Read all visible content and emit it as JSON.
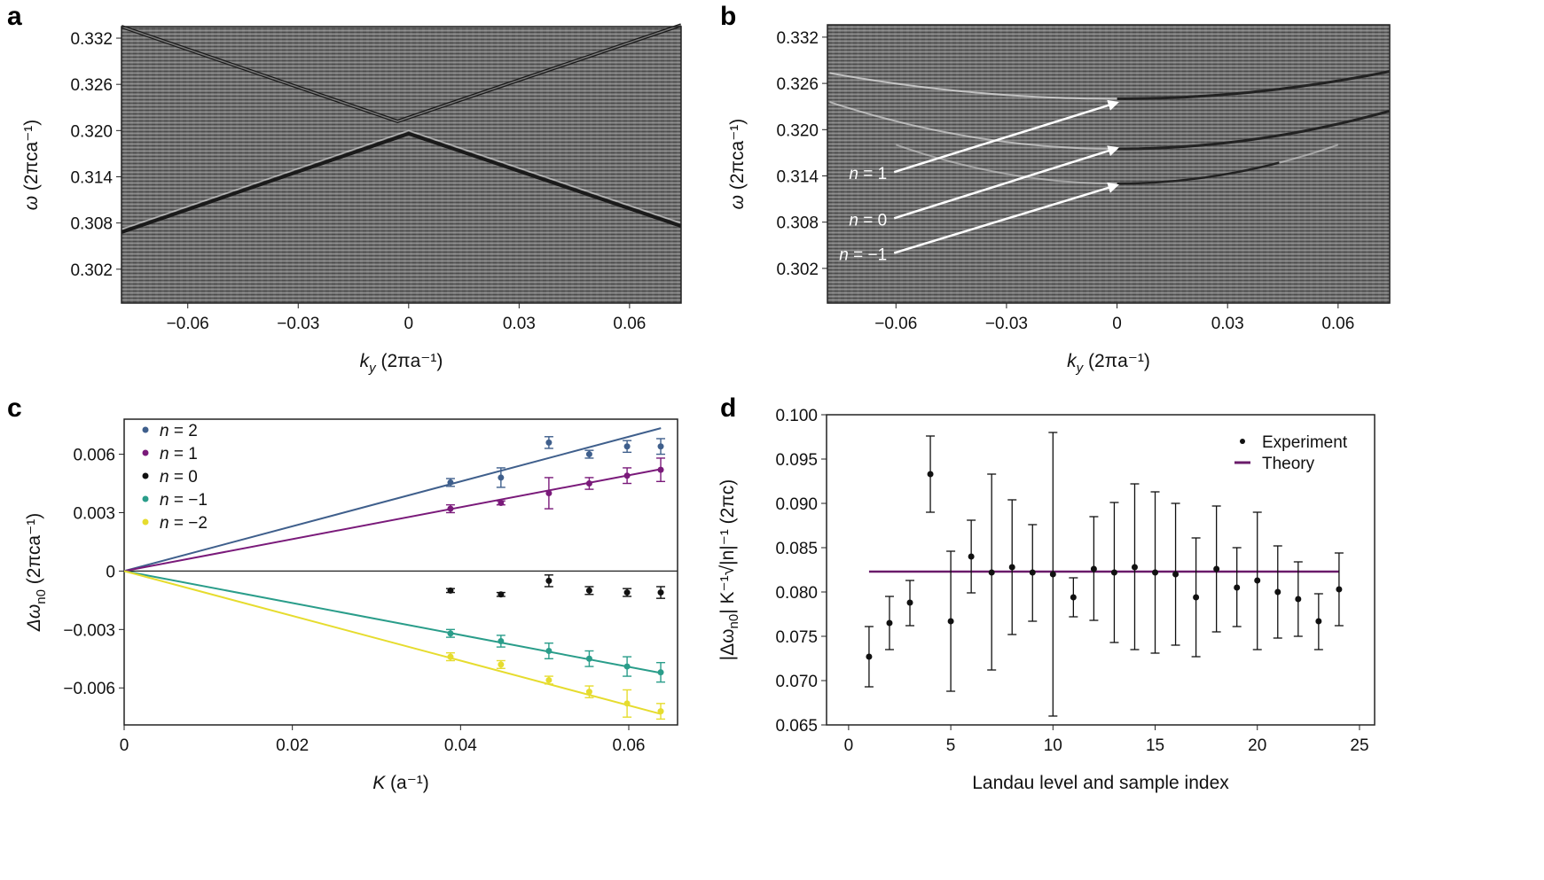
{
  "chart_data": [
    {
      "panel": "a",
      "type": "heatmap",
      "xlabel": {
        "var": "k",
        "sub": "y",
        "unit": " (2πa⁻¹)"
      },
      "ylabel": {
        "var": "ω",
        "unit": " (2πca⁻¹)"
      },
      "xlim": [
        -0.078,
        0.074
      ],
      "ylim": [
        0.2976,
        0.3335
      ],
      "xticks": [
        "-0.06",
        "-0.03",
        "0",
        "0.03",
        "0.06"
      ],
      "xtick_values": [
        -0.06,
        -0.03,
        0,
        0.03,
        0.06
      ],
      "yticks": [
        "0.302",
        "0.308",
        "0.314",
        "0.320",
        "0.326",
        "0.332"
      ],
      "ytick_values": [
        0.302,
        0.308,
        0.314,
        0.32,
        0.326,
        0.332
      ],
      "colormap": "grayscale"
    },
    {
      "panel": "b",
      "type": "heatmap",
      "xlabel": {
        "var": "k",
        "sub": "y",
        "unit": " (2πa⁻¹)"
      },
      "ylabel": {
        "var": "ω",
        "unit": " (2πca⁻¹)"
      },
      "xlim": [
        -0.0786,
        0.074
      ],
      "ylim": [
        0.2975,
        0.3336
      ],
      "xticks": [
        "-0.06",
        "-0.03",
        "0",
        "0.03",
        "0.06"
      ],
      "xtick_values": [
        -0.06,
        -0.03,
        0,
        0.03,
        0.06
      ],
      "yticks": [
        "0.302",
        "0.308",
        "0.314",
        "0.320",
        "0.326",
        "0.332"
      ],
      "ytick_values": [
        0.302,
        0.308,
        0.314,
        0.32,
        0.326,
        0.332
      ],
      "colormap": "grayscale",
      "annotations": [
        {
          "text": "n = 1",
          "from": [
            -0.0605,
            0.3145
          ],
          "to": [
            0,
            0.3235
          ]
        },
        {
          "text": "n = 0",
          "from": [
            -0.0605,
            0.3085
          ],
          "to": [
            0,
            0.3176
          ]
        },
        {
          "text": "n = −1",
          "from": [
            -0.0605,
            0.304
          ],
          "to": [
            0,
            0.3128
          ]
        }
      ]
    },
    {
      "panel": "c",
      "type": "scatter",
      "xlabel": {
        "var": "K",
        "unit": " (a⁻¹)"
      },
      "ylabel": {
        "var": "Δω",
        "sub": "n0",
        "unit": " (2πca⁻¹)"
      },
      "xlim": [
        0,
        0.0658
      ],
      "ylim": [
        -0.0079,
        0.0078
      ],
      "xticks": [
        "0",
        "0.02",
        "0.04",
        "0.06"
      ],
      "xtick_values": [
        0,
        0.02,
        0.04,
        0.06
      ],
      "yticks": [
        "-0.006",
        "-0.003",
        "0",
        "0.003",
        "0.006"
      ],
      "ytick_values": [
        -0.006,
        -0.003,
        0,
        0.003,
        0.006
      ],
      "legend_position": "top-left",
      "x": [
        0.0388,
        0.0448,
        0.0505,
        0.0553,
        0.0598,
        0.0638
      ],
      "series": [
        {
          "name": "n = 2",
          "color": "#3f5f8c",
          "fit_slope": 0.115,
          "values": [
            0.00455,
            0.0048,
            0.0066,
            0.006,
            0.0064,
            0.0064
          ],
          "errors": [
            0.0002,
            0.0005,
            0.0003,
            0.0002,
            0.0003,
            0.0004
          ]
        },
        {
          "name": "n = 1",
          "color": "#7a1a7a",
          "fit_slope": 0.082,
          "values": [
            0.0032,
            0.0035,
            0.004,
            0.0045,
            0.0049,
            0.0052
          ],
          "errors": [
            0.0002,
            0.0001,
            0.0008,
            0.0003,
            0.0004,
            0.0006
          ]
        },
        {
          "name": "n = 0",
          "color": "#111111",
          "values": [
            -0.001,
            -0.0012,
            -0.0005,
            -0.001,
            -0.0011,
            -0.0011
          ],
          "errors": [
            0.0001,
            0.0001,
            0.0003,
            0.0002,
            0.0002,
            0.0003
          ]
        },
        {
          "name": "n = −1",
          "color": "#2a9d8a",
          "fit_slope": -0.082,
          "values": [
            -0.0032,
            -0.0036,
            -0.0041,
            -0.0045,
            -0.0049,
            -0.0052
          ],
          "errors": [
            0.0002,
            0.0003,
            0.0004,
            0.0004,
            0.0005,
            0.0005
          ]
        },
        {
          "name": "n = −2",
          "color": "#e6dc2e",
          "fit_slope": -0.115,
          "values": [
            -0.0044,
            -0.0048,
            -0.0056,
            -0.0062,
            -0.0068,
            -0.0072
          ],
          "errors": [
            0.0002,
            0.0002,
            0.0002,
            0.0003,
            0.0007,
            0.0004
          ]
        }
      ]
    },
    {
      "panel": "d",
      "type": "scatter",
      "xlabel": {
        "var": "",
        "unit": "Landau level and sample index"
      },
      "ylabel": {
        "text": "|Δω",
        "sub": "n0",
        "rest": "| K⁻¹√|n|⁻¹ (2πc)"
      },
      "xlim": [
        -1.08,
        25.74
      ],
      "ylim": [
        0.065,
        0.1
      ],
      "xticks": [
        "0",
        "5",
        "10",
        "15",
        "20",
        "25"
      ],
      "xtick_values": [
        0,
        5,
        10,
        15,
        20,
        25
      ],
      "yticks": [
        "0.065",
        "0.070",
        "0.075",
        "0.080",
        "0.085",
        "0.090",
        "0.095",
        "0.100"
      ],
      "ytick_values": [
        0.065,
        0.07,
        0.075,
        0.08,
        0.085,
        0.09,
        0.095,
        0.1
      ],
      "legend_position": "top-right",
      "legend": [
        "Experiment",
        "Theory"
      ],
      "theory": {
        "value": 0.0823,
        "x_range": [
          1,
          24
        ],
        "color": "#6a1b6a"
      },
      "x": [
        1,
        2,
        3,
        4,
        5,
        6,
        7,
        8,
        9,
        10,
        11,
        12,
        13,
        14,
        15,
        16,
        17,
        18,
        19,
        20,
        21,
        22,
        23,
        24
      ],
      "values": [
        0.0727,
        0.0765,
        0.0788,
        0.0933,
        0.0767,
        0.084,
        0.0822,
        0.0828,
        0.0822,
        0.082,
        0.0794,
        0.0826,
        0.0822,
        0.0828,
        0.0822,
        0.082,
        0.0794,
        0.0826,
        0.0805,
        0.0813,
        0.08,
        0.0792,
        0.0767,
        0.0803
      ],
      "err_low": [
        0.0693,
        0.0735,
        0.0762,
        0.089,
        0.0688,
        0.0799,
        0.0712,
        0.0752,
        0.0767,
        0.066,
        0.0772,
        0.0768,
        0.0743,
        0.0735,
        0.0731,
        0.074,
        0.0727,
        0.0755,
        0.0761,
        0.0735,
        0.0748,
        0.075,
        0.0735,
        0.0762
      ],
      "err_high": [
        0.0761,
        0.0795,
        0.0813,
        0.0976,
        0.0846,
        0.0881,
        0.0933,
        0.0904,
        0.0876,
        0.098,
        0.0816,
        0.0885,
        0.0901,
        0.0922,
        0.0913,
        0.09,
        0.0861,
        0.0897,
        0.085,
        0.089,
        0.0852,
        0.0834,
        0.0798,
        0.0844
      ]
    }
  ]
}
